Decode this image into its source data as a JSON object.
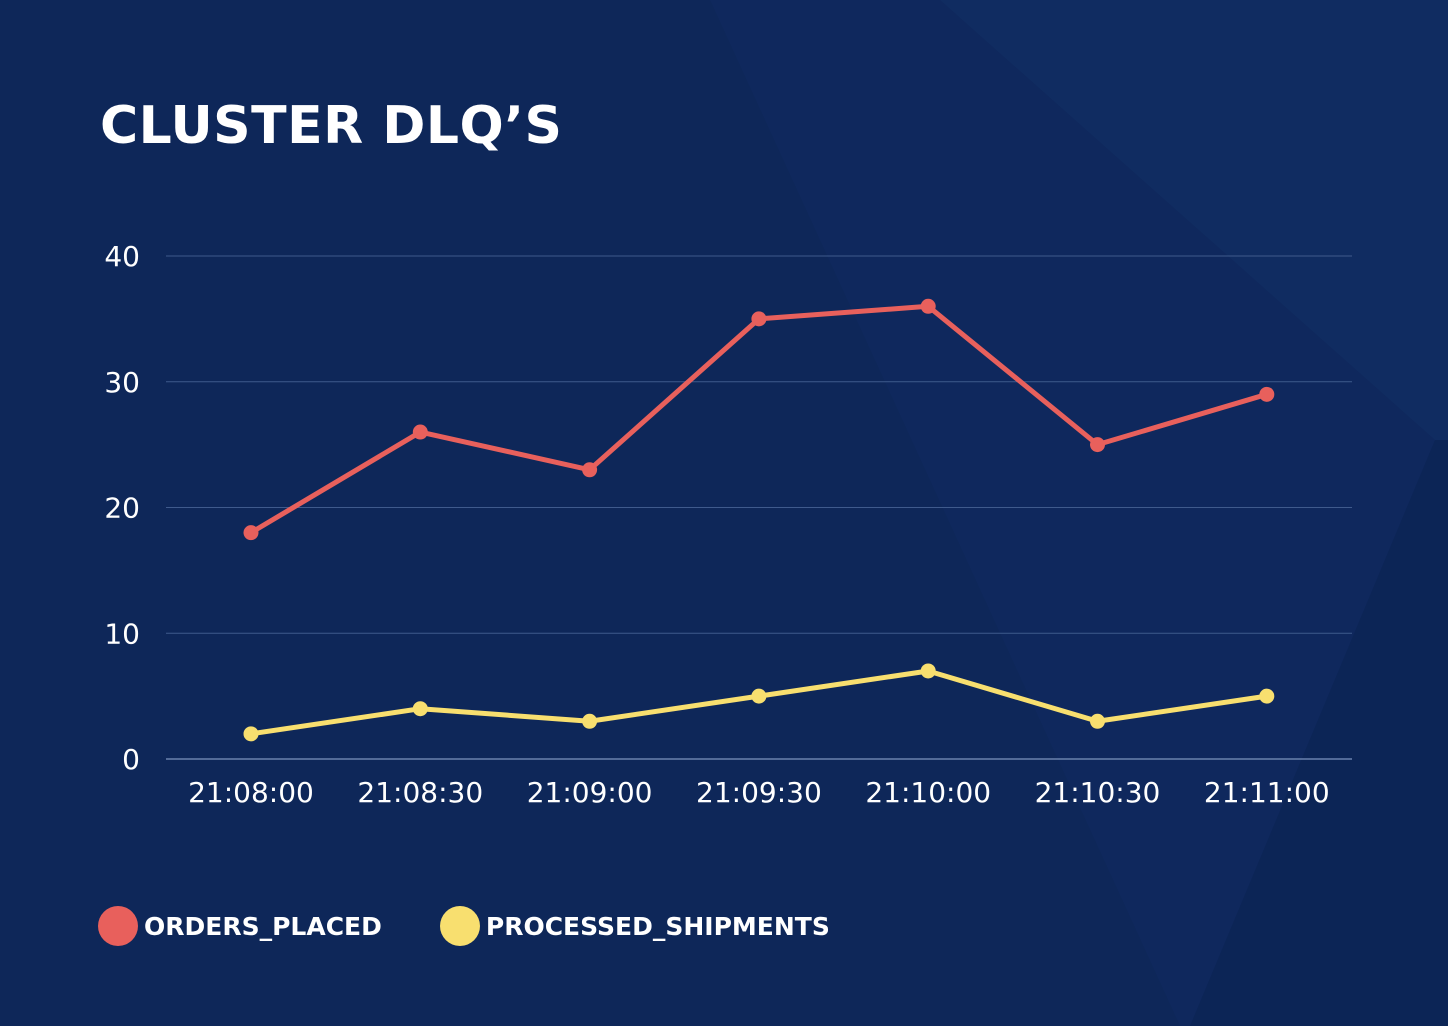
{
  "chart_data": {
    "type": "line",
    "title": "CLUSTER DLQ’S",
    "categories": [
      "21:08:00",
      "21:08:30",
      "21:09:00",
      "21:09:30",
      "21:10:00",
      "21:10:30",
      "21:11:00"
    ],
    "ylim": [
      0,
      40
    ],
    "yticks": [
      "0",
      "10",
      "20",
      "30",
      "40"
    ],
    "grid": true,
    "legend_placement": "bottom-left",
    "series": [
      {
        "name": "ORDERS_PLACED",
        "color": "#e8605c",
        "values": [
          18,
          26,
          23,
          35,
          36,
          25,
          29
        ]
      },
      {
        "name": "PROCESSED_SHIPMENTS",
        "color": "#f8df6f",
        "values": [
          2,
          4,
          3,
          5,
          7,
          3,
          5
        ]
      }
    ]
  }
}
